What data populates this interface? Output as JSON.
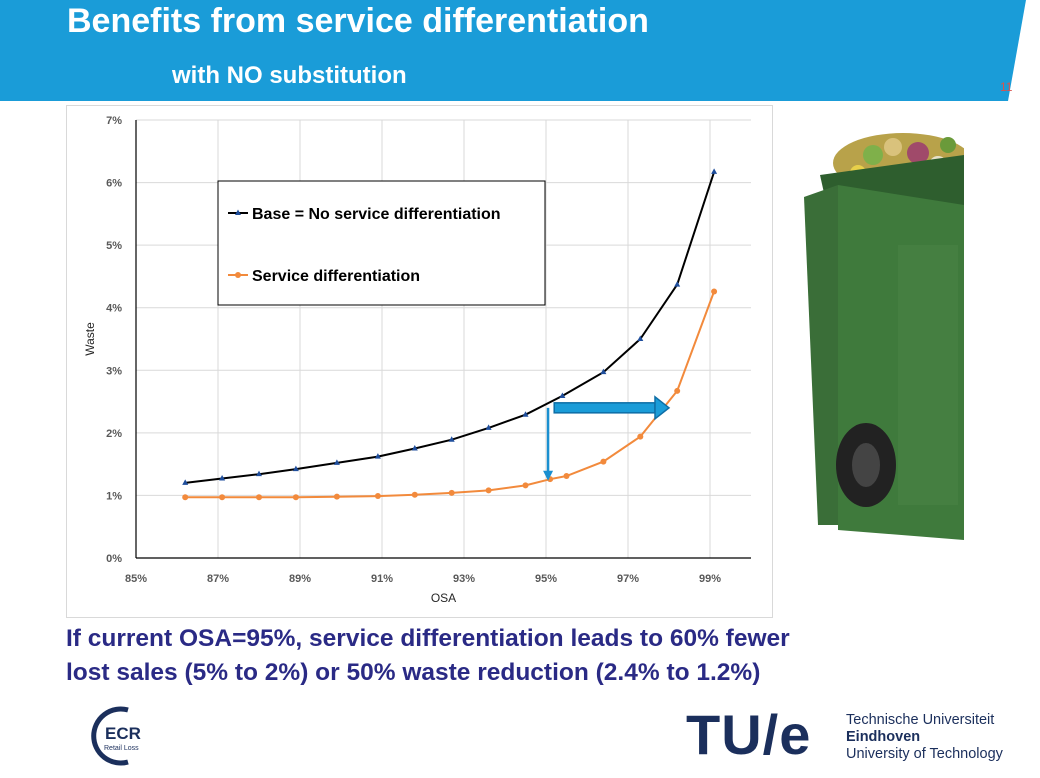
{
  "slide": {
    "title": "Benefits from service differentiation",
    "subtitle": "with NO substitution",
    "page_number": "11",
    "banner_color": "#1a9cd8"
  },
  "caption": {
    "line1": "If current OSA=95%, service differentiation leads to 60% fewer",
    "line2": "lost sales (5% to 2%) or 50% waste reduction (2.4% to 1.2%)"
  },
  "logos": {
    "ecr_text": "ECR",
    "ecr_subtext": "Retail Loss",
    "tue_mark": "TU/e",
    "tue_line1": "Technische Universiteit",
    "tue_line2": "Eindhoven",
    "tue_line3": "University of Technology"
  },
  "chart_data": {
    "type": "line",
    "xlabel": "OSA",
    "ylabel": "Waste",
    "xlim": [
      85,
      100
    ],
    "ylim": [
      0,
      7
    ],
    "x_ticks": [
      "85%",
      "87%",
      "89%",
      "91%",
      "93%",
      "95%",
      "97%",
      "99%"
    ],
    "y_ticks": [
      "0%",
      "1%",
      "2%",
      "3%",
      "4%",
      "5%",
      "6%",
      "7%"
    ],
    "grid": true,
    "legend_position": "top-left",
    "series": [
      {
        "name": "Base = No service differentiation",
        "color": "#000000",
        "marker_color": "#1f4e9c",
        "x": [
          86.2,
          87.1,
          88.0,
          88.9,
          89.9,
          90.9,
          91.8,
          92.7,
          93.6,
          94.5,
          95.4,
          96.4,
          97.3,
          98.2,
          99.1
        ],
        "y": [
          1.2,
          1.27,
          1.34,
          1.42,
          1.52,
          1.62,
          1.75,
          1.89,
          2.08,
          2.29,
          2.59,
          2.97,
          3.5,
          4.37,
          6.17
        ]
      },
      {
        "name": "Service differentiation",
        "color": "#f28a3c",
        "marker_color": "#f28a3c",
        "x": [
          86.2,
          87.1,
          88.0,
          88.9,
          89.9,
          90.9,
          91.8,
          92.7,
          93.6,
          94.5,
          95.1,
          95.5,
          96.4,
          97.3,
          98.2,
          99.1
        ],
        "y": [
          0.97,
          0.97,
          0.97,
          0.97,
          0.98,
          0.99,
          1.01,
          1.04,
          1.08,
          1.16,
          1.26,
          1.31,
          1.54,
          1.94,
          2.67,
          4.26
        ]
      }
    ],
    "annotations": [
      {
        "type": "vertical-arrow",
        "color": "#1a8fd0",
        "x": 95.05,
        "y_from": 2.4,
        "y_to": 1.25
      },
      {
        "type": "horizontal-arrow",
        "color": "#1a9cd8",
        "y": 2.4,
        "x_from": 95.2,
        "x_to": 98.0
      }
    ]
  }
}
